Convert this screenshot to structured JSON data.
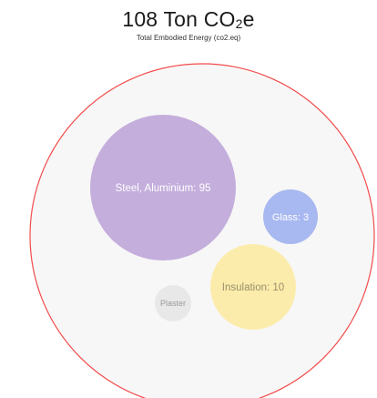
{
  "header": {
    "title_main": "108 Ton CO",
    "title_sub": "2",
    "title_tail": "e",
    "subtitle": "Total Embodied Energy (co2.eq)"
  },
  "chart_data": {
    "type": "bubble",
    "title": "108 Ton CO₂e",
    "subtitle": "Total Embodied Energy (co2.eq)",
    "unit": "Ton CO2e",
    "total": 108,
    "container": {
      "fill": "#f7f7f7",
      "stroke": "#f24a4a"
    },
    "bubbles": [
      {
        "label": "Steel, Aluminium: 95",
        "category": "Steel, Aluminium",
        "value": 95,
        "color": "#c4aedc",
        "text_color": "#ffffff"
      },
      {
        "label": "Glass: 3",
        "category": "Glass",
        "value": 3,
        "color": "#a8b8f0",
        "text_color": "#ffffff"
      },
      {
        "label": "Insulation: 10",
        "category": "Insulation",
        "value": 10,
        "color": "#fcecab",
        "text_color": "#9a8f6a"
      },
      {
        "label": "Plaster",
        "category": "Plaster",
        "value": null,
        "color": "#e8e8e8",
        "text_color": "#9a9a9a"
      }
    ]
  }
}
